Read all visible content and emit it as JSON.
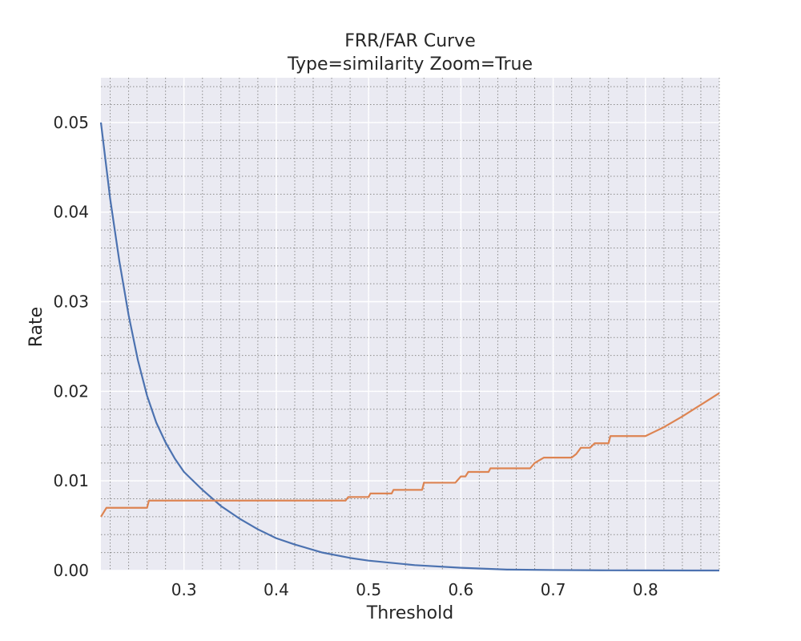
{
  "chart_data": {
    "type": "line",
    "title": "FRR/FAR Curve",
    "subtitle": "Type=similarity Zoom=True",
    "xlabel": "Threshold",
    "ylabel": "Rate",
    "xlim": [
      0.21,
      0.88
    ],
    "ylim": [
      0.0,
      0.055
    ],
    "xticks": [
      0.3,
      0.4,
      0.5,
      0.6,
      0.7,
      0.8
    ],
    "xtick_labels": [
      "0.3",
      "0.4",
      "0.5",
      "0.6",
      "0.7",
      "0.8"
    ],
    "yticks": [
      0.0,
      0.01,
      0.02,
      0.03,
      0.04,
      0.05
    ],
    "ytick_labels": [
      "0.00",
      "0.01",
      "0.02",
      "0.03",
      "0.04",
      "0.05"
    ],
    "grid": true,
    "minor_grid": true,
    "colors": {
      "background": "#eaeaf2",
      "grid_major": "#ffffff",
      "grid_minor": "#8c8c8c",
      "series_1": "#4c72b0",
      "series_2": "#dd8452"
    },
    "series": [
      {
        "x": [
          0.21,
          0.22,
          0.23,
          0.24,
          0.25,
          0.26,
          0.27,
          0.28,
          0.29,
          0.3,
          0.32,
          0.34,
          0.36,
          0.38,
          0.4,
          0.42,
          0.45,
          0.48,
          0.5,
          0.55,
          0.6,
          0.65,
          0.7,
          0.75,
          0.8,
          0.85,
          0.88
        ],
        "y": [
          0.05,
          0.0415,
          0.0345,
          0.0285,
          0.0235,
          0.0195,
          0.0165,
          0.0143,
          0.0125,
          0.011,
          0.009,
          0.0072,
          0.0058,
          0.0046,
          0.0036,
          0.0029,
          0.002,
          0.0014,
          0.0011,
          0.0006,
          0.0003,
          0.0001,
          5e-05,
          2e-05,
          1e-05,
          0.0,
          0.0
        ]
      },
      {
        "x": [
          0.21,
          0.213,
          0.216,
          0.26,
          0.262,
          0.475,
          0.478,
          0.5,
          0.502,
          0.525,
          0.527,
          0.558,
          0.56,
          0.594,
          0.6,
          0.605,
          0.608,
          0.63,
          0.632,
          0.675,
          0.68,
          0.685,
          0.69,
          0.72,
          0.725,
          0.73,
          0.74,
          0.745,
          0.76,
          0.762,
          0.8,
          0.81,
          0.82,
          0.84,
          0.86,
          0.88
        ],
        "y": [
          0.006,
          0.0065,
          0.007,
          0.007,
          0.0078,
          0.0078,
          0.0082,
          0.0082,
          0.0086,
          0.0086,
          0.009,
          0.009,
          0.0098,
          0.0098,
          0.0105,
          0.0105,
          0.011,
          0.011,
          0.0114,
          0.0114,
          0.012,
          0.0123,
          0.0126,
          0.0126,
          0.013,
          0.0137,
          0.0137,
          0.0142,
          0.0142,
          0.015,
          0.015,
          0.0155,
          0.016,
          0.0172,
          0.0185,
          0.0198
        ]
      }
    ]
  }
}
